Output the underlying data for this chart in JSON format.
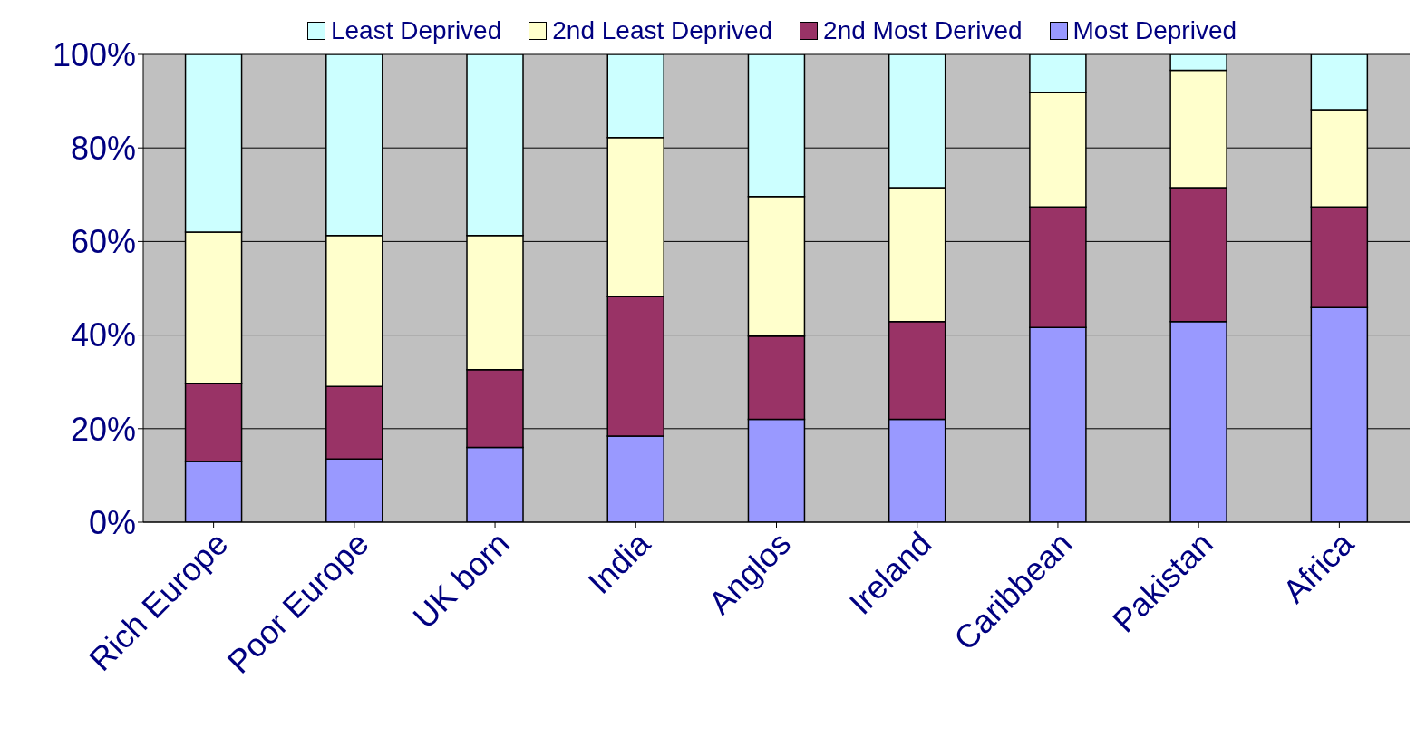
{
  "chart_data": {
    "type": "bar",
    "stacked": true,
    "categories": [
      "Rich Europe",
      "Poor Europe",
      "UK born",
      "India",
      "Anglos",
      "Ireland",
      "Caribbean",
      "Pakistan",
      "Africa"
    ],
    "series": [
      {
        "name": "Most Deprived",
        "color": "#9999ff",
        "values": [
          13,
          13.5,
          16,
          18.4,
          22,
          22,
          41.6,
          42.9,
          45.9
        ]
      },
      {
        "name": "2nd Most Derived",
        "color": "#993366",
        "values": [
          16.6,
          15.5,
          16.6,
          29.8,
          17.8,
          20.9,
          25.8,
          28.6,
          21.5
        ]
      },
      {
        "name": "2nd Least Deprived",
        "color": "#ffffcc",
        "values": [
          32.4,
          32.3,
          28.7,
          34,
          29.8,
          28.6,
          24.4,
          25.1,
          20.8
        ]
      },
      {
        "name": "Least Deprived",
        "color": "#ccffff",
        "values": [
          38,
          38.7,
          38.7,
          17.8,
          30.4,
          28.5,
          8.2,
          3.4,
          11.8
        ]
      }
    ],
    "ylim": [
      0,
      100
    ],
    "yticks": [
      {
        "value": 0,
        "label": "0%"
      },
      {
        "value": 20,
        "label": "20%"
      },
      {
        "value": 40,
        "label": "40%"
      },
      {
        "value": 60,
        "label": "60%"
      },
      {
        "value": 80,
        "label": "80%"
      },
      {
        "value": 100,
        "label": "100%"
      }
    ],
    "grid": "y",
    "legend": "top"
  }
}
